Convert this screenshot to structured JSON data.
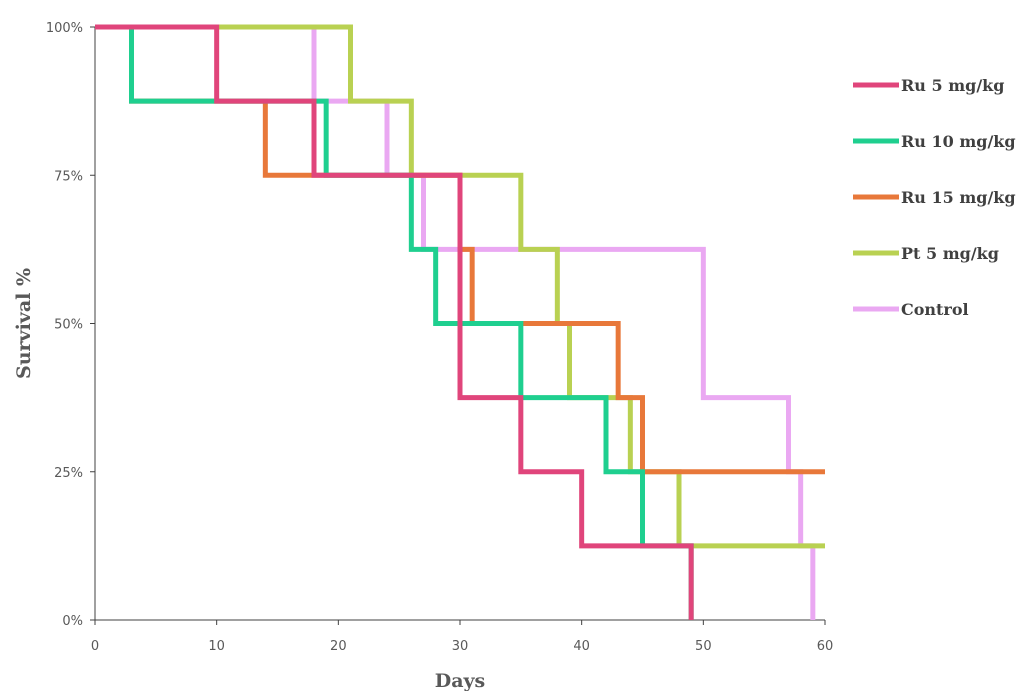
{
  "chart_data": {
    "type": "line",
    "step": true,
    "xlabel": "Days",
    "ylabel": "Survival %",
    "xlim": [
      0,
      60
    ],
    "ylim": [
      0,
      100
    ],
    "x_ticks": [
      0,
      10,
      20,
      30,
      40,
      50,
      60
    ],
    "y_ticks": [
      0,
      25,
      50,
      75,
      100
    ],
    "y_tick_labels": [
      "0%",
      "25%",
      "50%",
      "75%",
      "100%"
    ],
    "grid": false,
    "legend_position": "right",
    "series": [
      {
        "name": "Ru 5 mg/kg",
        "color": "#e0457b",
        "points": [
          [
            0,
            100
          ],
          [
            10,
            87.5
          ],
          [
            18,
            75
          ],
          [
            30,
            62.5
          ],
          [
            30,
            37.5
          ],
          [
            35,
            25
          ],
          [
            40,
            12.5
          ],
          [
            49,
            0
          ]
        ]
      },
      {
        "name": "Ru 10 mg/kg",
        "color": "#1fcf8f",
        "points": [
          [
            0,
            100
          ],
          [
            3,
            87.5
          ],
          [
            19,
            75
          ],
          [
            26,
            62.5
          ],
          [
            28,
            50
          ],
          [
            35,
            37.5
          ],
          [
            42,
            25
          ],
          [
            45,
            12.5
          ],
          [
            49,
            0
          ]
        ]
      },
      {
        "name": "Ru 15 mg/kg",
        "color": "#e8783a",
        "points": [
          [
            0,
            100
          ],
          [
            3,
            87.5
          ],
          [
            14,
            75
          ],
          [
            30,
            62.5
          ],
          [
            31,
            50
          ],
          [
            43,
            37.5
          ],
          [
            45,
            25
          ],
          [
            60,
            25
          ]
        ]
      },
      {
        "name": "Pt 5 mg/kg",
        "color": "#b9d152",
        "points": [
          [
            0,
            100
          ],
          [
            21,
            87.5
          ],
          [
            26,
            75
          ],
          [
            35,
            62.5
          ],
          [
            38,
            50
          ],
          [
            39,
            37.5
          ],
          [
            44,
            25
          ],
          [
            48,
            12.5
          ],
          [
            60,
            12.5
          ]
        ]
      },
      {
        "name": "Control",
        "color": "#eaa8f2",
        "points": [
          [
            0,
            100
          ],
          [
            18,
            87.5
          ],
          [
            24,
            75
          ],
          [
            27,
            62.5
          ],
          [
            50,
            37.5
          ],
          [
            57,
            25
          ],
          [
            58,
            12.5
          ],
          [
            59,
            0
          ]
        ]
      }
    ]
  }
}
